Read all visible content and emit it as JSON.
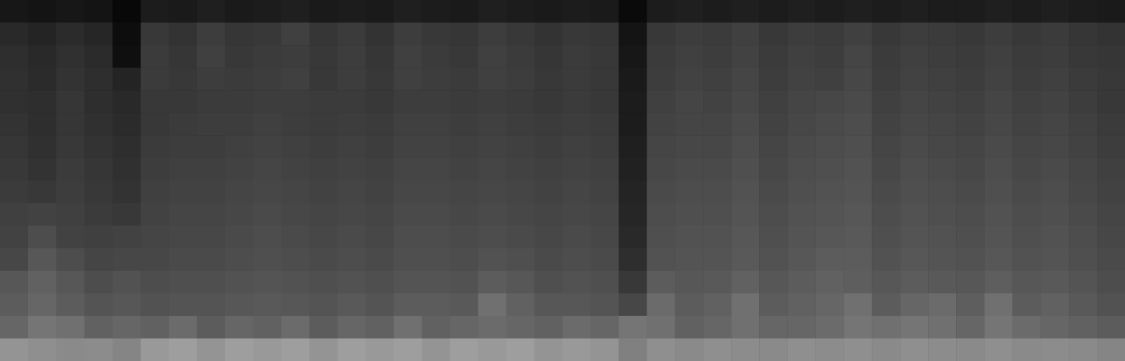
{
  "chart_data": {
    "type": "heatmap",
    "tick_labels": false,
    "color": "#ffffff",
    "zlim": [
      0,
      100
    ],
    "cells": [
      [
        9,
        8,
        9,
        8,
        3,
        11,
        10,
        12,
        10,
        11,
        12,
        10,
        11,
        10,
        12,
        11,
        10,
        12,
        11,
        10,
        11,
        10,
        4,
        11,
        12,
        11,
        12,
        11,
        12,
        11,
        12,
        11,
        12,
        11,
        11,
        12,
        11,
        12,
        11,
        10
      ],
      [
        16,
        14,
        17,
        15,
        5,
        22,
        20,
        24,
        21,
        22,
        25,
        21,
        23,
        20,
        24,
        22,
        21,
        24,
        22,
        20,
        22,
        21,
        8,
        22,
        24,
        23,
        25,
        22,
        24,
        23,
        25,
        22,
        24,
        23,
        22,
        24,
        22,
        23,
        21,
        20
      ],
      [
        18,
        16,
        19,
        17,
        6,
        23,
        21,
        25,
        22,
        23,
        24,
        22,
        24,
        21,
        25,
        23,
        22,
        25,
        23,
        21,
        23,
        22,
        9,
        23,
        25,
        24,
        26,
        23,
        25,
        24,
        27,
        23,
        25,
        24,
        23,
        25,
        23,
        24,
        22,
        21
      ],
      [
        19,
        17,
        20,
        18,
        14,
        23,
        22,
        24,
        23,
        24,
        25,
        22,
        24,
        22,
        25,
        24,
        23,
        25,
        24,
        22,
        23,
        22,
        10,
        24,
        26,
        25,
        27,
        24,
        26,
        25,
        28,
        24,
        26,
        25,
        24,
        26,
        24,
        25,
        23,
        22
      ],
      [
        19,
        18,
        21,
        18,
        16,
        22,
        22,
        23,
        23,
        24,
        24,
        23,
        23,
        22,
        24,
        24,
        23,
        24,
        23,
        22,
        23,
        22,
        11,
        25,
        27,
        26,
        28,
        25,
        27,
        28,
        29,
        25,
        27,
        26,
        25,
        27,
        25,
        26,
        24,
        22
      ],
      [
        20,
        18,
        21,
        19,
        17,
        22,
        23,
        24,
        24,
        25,
        24,
        23,
        24,
        23,
        25,
        25,
        24,
        25,
        24,
        23,
        24,
        23,
        11,
        26,
        27,
        27,
        29,
        26,
        28,
        29,
        30,
        26,
        28,
        27,
        26,
        28,
        26,
        27,
        25,
        23
      ],
      [
        21,
        19,
        22,
        20,
        18,
        23,
        24,
        24,
        25,
        26,
        25,
        24,
        25,
        24,
        26,
        26,
        25,
        26,
        25,
        24,
        25,
        24,
        12,
        27,
        28,
        28,
        30,
        27,
        29,
        30,
        31,
        27,
        29,
        28,
        27,
        29,
        27,
        28,
        26,
        24
      ],
      [
        22,
        20,
        23,
        21,
        19,
        24,
        25,
        25,
        26,
        27,
        26,
        25,
        26,
        25,
        27,
        27,
        26,
        27,
        26,
        25,
        26,
        25,
        13,
        28,
        29,
        29,
        31,
        28,
        30,
        31,
        32,
        28,
        30,
        29,
        28,
        30,
        28,
        29,
        27,
        25
      ],
      [
        23,
        22,
        24,
        22,
        20,
        25,
        26,
        26,
        27,
        28,
        27,
        26,
        27,
        26,
        28,
        28,
        27,
        28,
        27,
        26,
        27,
        26,
        14,
        29,
        30,
        30,
        32,
        29,
        31,
        32,
        33,
        29,
        31,
        30,
        29,
        31,
        29,
        30,
        28,
        26
      ],
      [
        25,
        26,
        25,
        23,
        22,
        26,
        27,
        27,
        28,
        29,
        28,
        27,
        28,
        27,
        29,
        29,
        28,
        29,
        28,
        27,
        28,
        27,
        15,
        30,
        31,
        31,
        33,
        30,
        32,
        33,
        34,
        30,
        32,
        31,
        30,
        32,
        30,
        31,
        29,
        27
      ],
      [
        26,
        30,
        26,
        25,
        26,
        27,
        28,
        28,
        29,
        30,
        29,
        28,
        29,
        28,
        30,
        30,
        29,
        30,
        29,
        28,
        29,
        28,
        16,
        31,
        32,
        32,
        34,
        31,
        33,
        34,
        35,
        31,
        33,
        32,
        31,
        33,
        31,
        32,
        30,
        28
      ],
      [
        28,
        34,
        30,
        27,
        28,
        28,
        29,
        29,
        30,
        31,
        30,
        29,
        30,
        29,
        31,
        31,
        30,
        32,
        31,
        29,
        30,
        29,
        18,
        32,
        33,
        33,
        35,
        32,
        34,
        36,
        36,
        32,
        34,
        33,
        32,
        34,
        32,
        33,
        31,
        29
      ],
      [
        34,
        38,
        34,
        30,
        32,
        30,
        31,
        31,
        32,
        33,
        32,
        31,
        32,
        31,
        33,
        33,
        32,
        36,
        34,
        31,
        32,
        31,
        22,
        36,
        34,
        35,
        38,
        34,
        36,
        38,
        37,
        34,
        36,
        35,
        34,
        37,
        34,
        35,
        33,
        30
      ],
      [
        36,
        40,
        36,
        33,
        34,
        32,
        33,
        33,
        34,
        35,
        34,
        33,
        35,
        33,
        36,
        36,
        35,
        44,
        38,
        34,
        34,
        33,
        28,
        42,
        36,
        38,
        44,
        36,
        38,
        40,
        44,
        36,
        40,
        42,
        37,
        44,
        36,
        38,
        35,
        32
      ],
      [
        40,
        46,
        44,
        38,
        40,
        38,
        42,
        36,
        40,
        38,
        42,
        36,
        40,
        38,
        44,
        38,
        40,
        42,
        40,
        38,
        42,
        40,
        46,
        44,
        38,
        40,
        44,
        40,
        40,
        42,
        46,
        44,
        46,
        44,
        40,
        46,
        42,
        40,
        38,
        36
      ],
      [
        58,
        56,
        54,
        55,
        52,
        60,
        62,
        58,
        62,
        60,
        62,
        58,
        62,
        60,
        62,
        58,
        62,
        60,
        62,
        58,
        60,
        58,
        50,
        56,
        54,
        56,
        55,
        54,
        56,
        55,
        56,
        54,
        56,
        55,
        54,
        56,
        54,
        55,
        54,
        52
      ]
    ]
  }
}
